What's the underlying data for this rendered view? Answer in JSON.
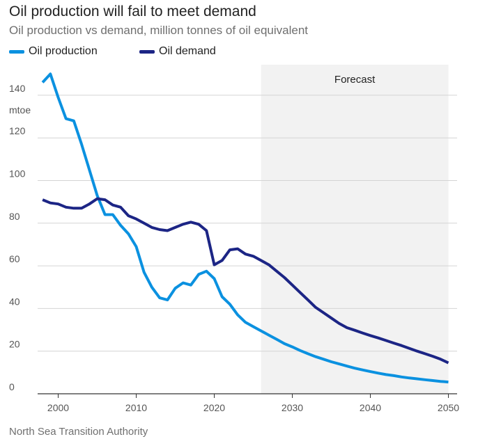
{
  "title": "Oil production will fail to meet demand",
  "subtitle": "Oil production vs demand, million tonnes of oil equivalent",
  "source": "North Sea Transition Authority",
  "colors": {
    "production": "#0b91e0",
    "demand": "#1c2585",
    "forecast_band": "#f2f2f2",
    "grid": "#d4d4d4",
    "axis": "#333333"
  },
  "chart_data": {
    "type": "line",
    "title": "Oil production will fail to meet demand",
    "subtitle": "Oil production vs demand, million tonnes of oil equivalent",
    "xlabel": "",
    "ylabel": "mtoe",
    "xlim": [
      1998,
      2050
    ],
    "ylim": [
      0,
      150
    ],
    "x_ticks": [
      2000,
      2010,
      2020,
      2030,
      2040,
      2050
    ],
    "y_ticks": [
      0,
      20,
      40,
      60,
      80,
      100,
      120,
      140
    ],
    "y_unit_label": "mtoe",
    "forecast": {
      "label": "Forecast",
      "start": 2026,
      "end": 2050
    },
    "legend": [
      "Oil production",
      "Oil demand"
    ],
    "series": [
      {
        "name": "Oil production",
        "color": "#0b91e0",
        "points": [
          [
            1998,
            146
          ],
          [
            1999,
            150
          ],
          [
            2000,
            139
          ],
          [
            2001,
            129
          ],
          [
            2002,
            128
          ],
          [
            2003,
            117
          ],
          [
            2004,
            105
          ],
          [
            2005,
            93
          ],
          [
            2006,
            84
          ],
          [
            2007,
            84
          ],
          [
            2008,
            79
          ],
          [
            2009,
            75
          ],
          [
            2010,
            69
          ],
          [
            2011,
            57
          ],
          [
            2012,
            50
          ],
          [
            2013,
            45
          ],
          [
            2014,
            44
          ],
          [
            2015,
            49.5
          ],
          [
            2016,
            52
          ],
          [
            2017,
            51
          ],
          [
            2018,
            56
          ],
          [
            2019,
            57.5
          ],
          [
            2020,
            54
          ],
          [
            2021,
            45.5
          ],
          [
            2022,
            42
          ],
          [
            2023,
            37
          ],
          [
            2024,
            33.5
          ],
          [
            2025,
            31.5
          ],
          [
            2026,
            29.5
          ],
          [
            2027,
            27.5
          ],
          [
            2028,
            25.5
          ],
          [
            2029,
            23.5
          ],
          [
            2030,
            22
          ],
          [
            2031,
            20.3
          ],
          [
            2032,
            18.8
          ],
          [
            2033,
            17.4
          ],
          [
            2034,
            16.2
          ],
          [
            2035,
            15
          ],
          [
            2036,
            14
          ],
          [
            2037,
            13
          ],
          [
            2038,
            12
          ],
          [
            2039,
            11.2
          ],
          [
            2040,
            10.4
          ],
          [
            2041,
            9.7
          ],
          [
            2042,
            9
          ],
          [
            2043,
            8.5
          ],
          [
            2044,
            7.9
          ],
          [
            2045,
            7.4
          ],
          [
            2046,
            7
          ],
          [
            2047,
            6.6
          ],
          [
            2048,
            6.2
          ],
          [
            2049,
            5.8
          ],
          [
            2050,
            5.5
          ]
        ]
      },
      {
        "name": "Oil demand",
        "color": "#1c2585",
        "points": [
          [
            1998,
            91
          ],
          [
            1999,
            89.5
          ],
          [
            2000,
            89
          ],
          [
            2001,
            87.5
          ],
          [
            2002,
            87
          ],
          [
            2003,
            87
          ],
          [
            2004,
            89
          ],
          [
            2005,
            91.5
          ],
          [
            2006,
            91
          ],
          [
            2007,
            88.5
          ],
          [
            2008,
            87.5
          ],
          [
            2009,
            83.5
          ],
          [
            2010,
            82
          ],
          [
            2011,
            80
          ],
          [
            2012,
            78
          ],
          [
            2013,
            77
          ],
          [
            2014,
            76.5
          ],
          [
            2015,
            78
          ],
          [
            2016,
            79.5
          ],
          [
            2017,
            80.5
          ],
          [
            2018,
            79.5
          ],
          [
            2019,
            76.5
          ],
          [
            2020,
            60.5
          ],
          [
            2021,
            62.5
          ],
          [
            2022,
            67.5
          ],
          [
            2023,
            68
          ],
          [
            2024,
            65.5
          ],
          [
            2025,
            64.5
          ],
          [
            2026,
            62.5
          ],
          [
            2027,
            60.5
          ],
          [
            2028,
            57.5
          ],
          [
            2029,
            54.5
          ],
          [
            2030,
            51
          ],
          [
            2031,
            47.5
          ],
          [
            2032,
            44
          ],
          [
            2033,
            40.5
          ],
          [
            2034,
            38
          ],
          [
            2035,
            35.5
          ],
          [
            2036,
            33
          ],
          [
            2037,
            31
          ],
          [
            2038,
            29.8
          ],
          [
            2039,
            28.5
          ],
          [
            2040,
            27.3
          ],
          [
            2041,
            26.2
          ],
          [
            2042,
            25
          ],
          [
            2043,
            23.8
          ],
          [
            2044,
            22.6
          ],
          [
            2045,
            21.3
          ],
          [
            2046,
            20
          ],
          [
            2047,
            18.8
          ],
          [
            2048,
            17.6
          ],
          [
            2049,
            16.2
          ],
          [
            2050,
            14.5
          ]
        ]
      }
    ]
  }
}
